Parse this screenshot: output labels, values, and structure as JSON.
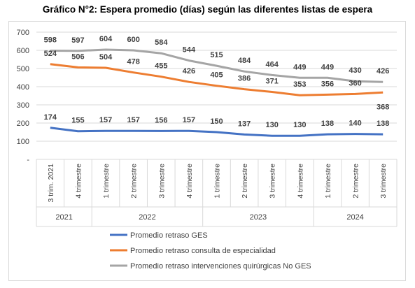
{
  "chart_data": {
    "type": "line",
    "title": "Gráfico N°2: Espera promedio (días) según las diferentes listas de espera",
    "categories": [
      "3 trim. 2021",
      "4 trimestre",
      "1 trimestre",
      "2 trimestre",
      "3 trimestre",
      "4 trimestre",
      "1 trimestre",
      "2 trimestre",
      "3 trimestre",
      "4 trimestre",
      "1 trimestre",
      "2 trimestre",
      "3 trimestre"
    ],
    "groups": [
      {
        "label": "2021",
        "count": 2
      },
      {
        "label": "2022",
        "count": 4
      },
      {
        "label": "2023",
        "count": 4
      },
      {
        "label": "2024",
        "count": 3
      }
    ],
    "yticks": [
      "-",
      "100",
      "200",
      "300",
      "400",
      "500",
      "600",
      "700"
    ],
    "ylim": [
      0,
      700
    ],
    "grid": true,
    "legend_position": "bottom",
    "series": [
      {
        "name": "Promedio retraso GES",
        "color": "#4472C4",
        "values": [
          174,
          155,
          157,
          157,
          156,
          157,
          150,
          137,
          130,
          130,
          138,
          140,
          138
        ]
      },
      {
        "name": "Promedio retraso consulta de especialidad",
        "color": "#ED7D31",
        "values": [
          524,
          506,
          504,
          478,
          455,
          426,
          405,
          386,
          371,
          353,
          356,
          360,
          368
        ]
      },
      {
        "name": "Promedio retraso intervenciones quirúrgicas No GES",
        "color": "#A5A5A5",
        "values": [
          598,
          597,
          604,
          600,
          584,
          544,
          515,
          484,
          464,
          449,
          449,
          430,
          426
        ]
      }
    ]
  }
}
